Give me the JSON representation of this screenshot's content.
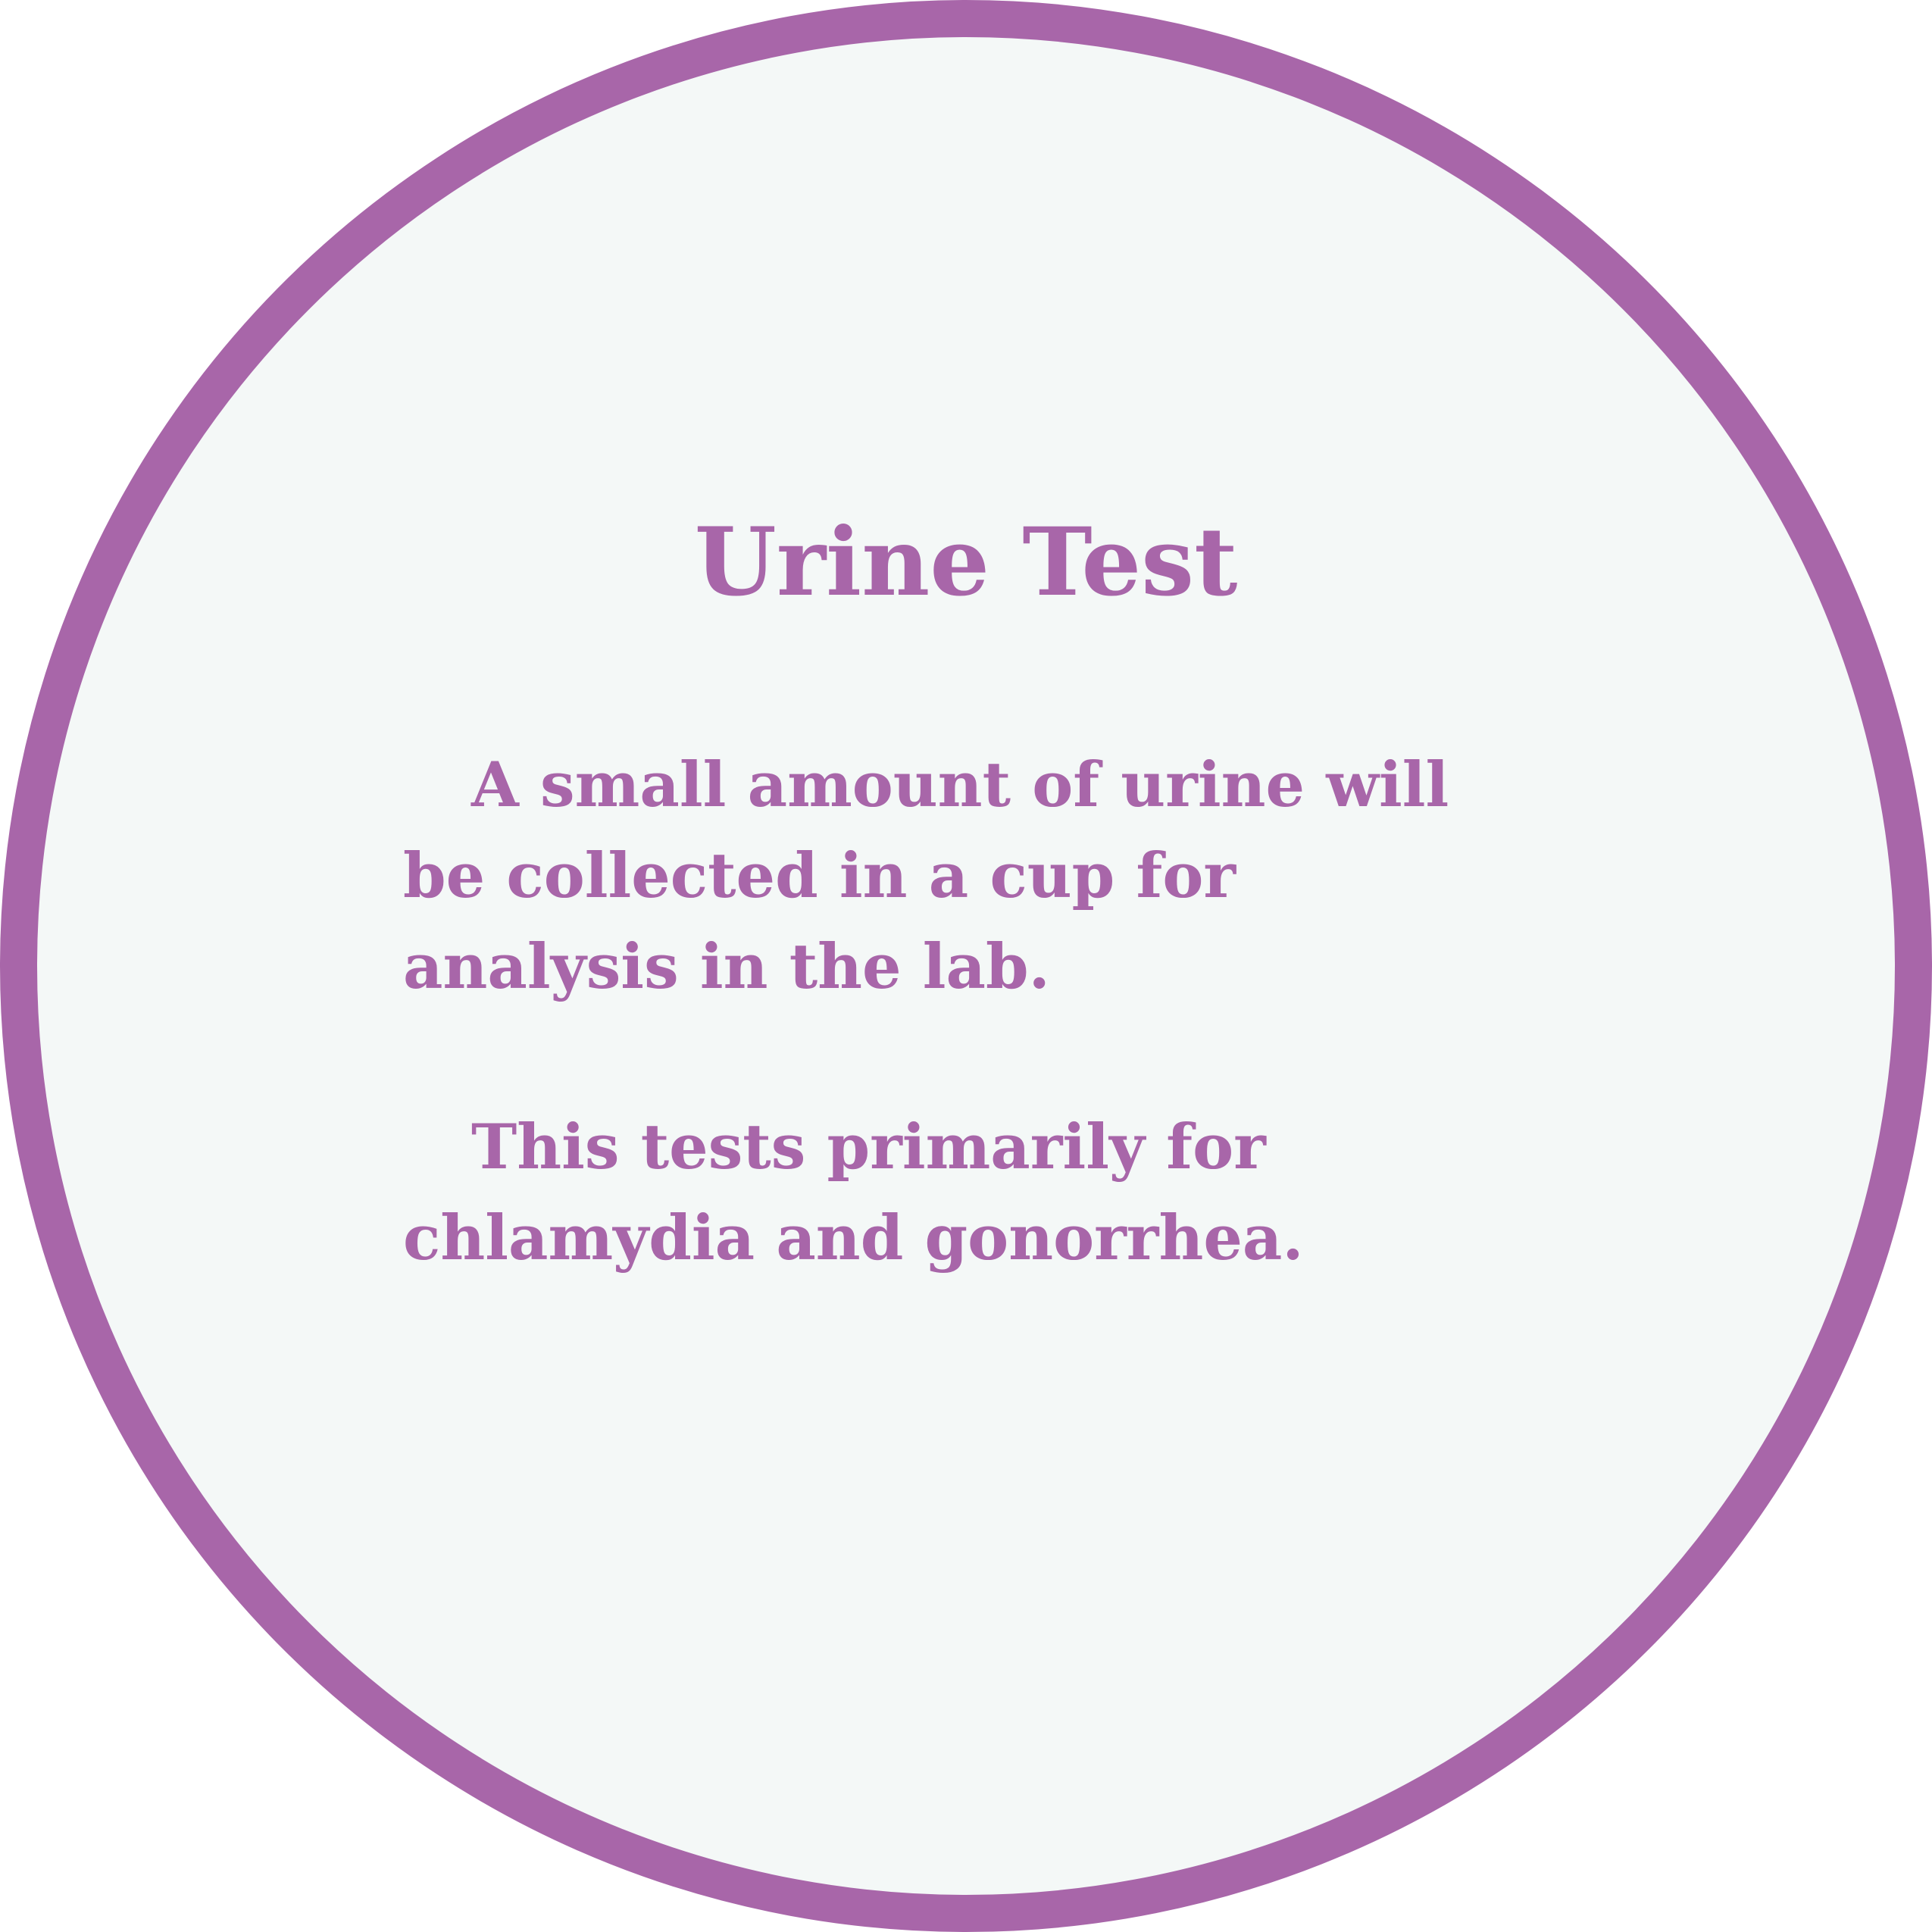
{
  "card": {
    "title": "Urine Test",
    "paragraph_1": "A small amount of urine will\nbe collected in a cup for\nanalysis in the lab.",
    "paragraph_2": "This tests primarily for\nchlamydia and gonorrhea."
  },
  "colors": {
    "accent": "#a866a9",
    "background": "#f4f8f7",
    "page": "#ffffff"
  }
}
